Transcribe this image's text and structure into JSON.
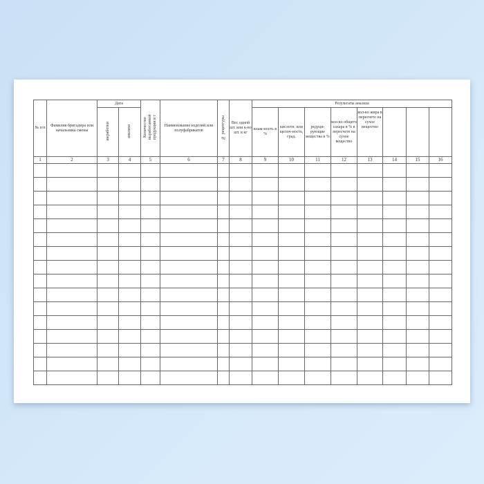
{
  "table": {
    "headers": {
      "num": "№ п/п",
      "surname": "Фамилия бригадира или начальника смены",
      "date_group": "Дата",
      "date_production": "выработки",
      "date_analysis": "анализа",
      "quantity": "Количество выработанной продукции в т",
      "product_name": "Наименование изделий или полуфабрикатов",
      "recipe_no": "№ рецептуры",
      "weight": "Вес одной шт. или к-во шт. в кг",
      "results_group": "Результаты анализа",
      "moisture": "влаж-ность в %",
      "acidity": "кислотн. или щелоч-ность, град.",
      "reducing": "редуци-рующие вещества в %",
      "sugar": "кол-во общего сахара в % в пересчете на сухое вещество",
      "fat": "кол-во жира в пересчете на сухое вещество",
      "col14": "",
      "col15": "",
      "col16": ""
    },
    "column_numbers": [
      "1",
      "2",
      "3",
      "4",
      "5",
      "6",
      "7",
      "8",
      "9",
      "10",
      "11",
      "12",
      "13",
      "14",
      "15",
      "16"
    ]
  }
}
